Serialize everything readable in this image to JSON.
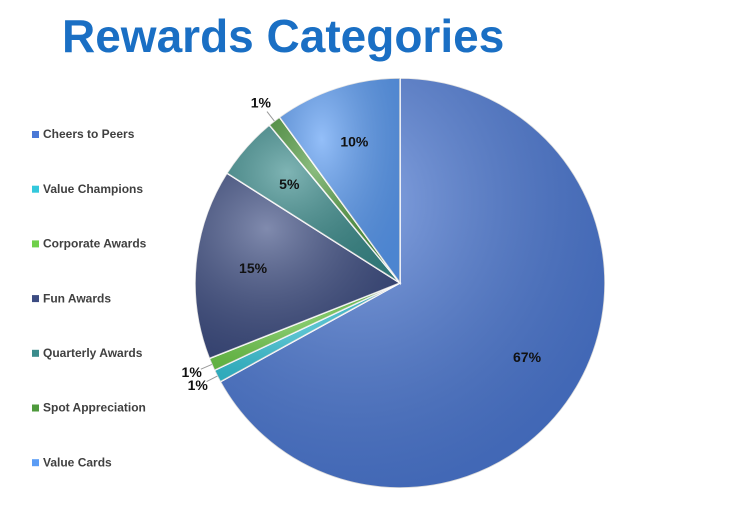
{
  "chart_data": {
    "type": "pie",
    "title": "Rewards Categories",
    "categories": [
      "Cheers to Peers",
      "Value Champions",
      "Corporate Awards",
      "Fun Awards",
      "Quarterly Awards",
      "Spot Appreciation",
      "Value Cards"
    ],
    "values": [
      67,
      1,
      1,
      15,
      5,
      1,
      10
    ],
    "value_labels": [
      "67%",
      "1%",
      "1%",
      "15%",
      "5%",
      "1%",
      "10%"
    ],
    "colors": [
      "#4a78d6",
      "#33c8dc",
      "#6fd04a",
      "#3c4c82",
      "#3a8c8c",
      "#4e9a3c",
      "#5a9cf5"
    ],
    "legend": "left"
  }
}
